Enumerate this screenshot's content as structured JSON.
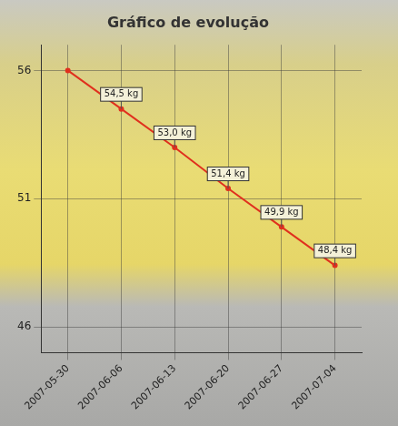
{
  "chart_data": {
    "type": "line",
    "title": "Gráfico de evolução",
    "categories": [
      "2007-05-30",
      "2007-06-06",
      "2007-06-13",
      "2007-06-20",
      "2007-06-27",
      "2007-07-04"
    ],
    "values": [
      56.0,
      54.5,
      53.0,
      51.4,
      49.9,
      48.4
    ],
    "value_labels": [
      null,
      "54,5 kg",
      "53,0 kg",
      "51,4 kg",
      "49,9 kg",
      "48,4 kg"
    ],
    "color": "#e0301e",
    "ylim": [
      45,
      57
    ],
    "yticks": [
      46,
      51,
      56
    ],
    "grid": true,
    "data_labels": true
  }
}
